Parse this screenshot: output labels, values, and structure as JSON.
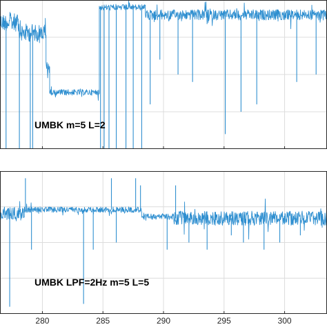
{
  "chart_data": [
    {
      "type": "line",
      "annotation": "UMBK m=5 L=2",
      "xlim": [
        276.5,
        303.5
      ],
      "x_ticks": [
        280,
        285,
        290,
        295,
        300
      ],
      "grid": true,
      "series_color": "#2f8fd0",
      "segments": [
        {
          "x": [
            276.5,
            278.0
          ],
          "y_level": 0.15,
          "noise": 0.06
        },
        {
          "x": [
            278.0,
            280.3
          ],
          "y_level": 0.22,
          "noise": 0.06
        },
        {
          "x": [
            280.3,
            280.6
          ],
          "y_level": 0.45,
          "noise": 0.04
        },
        {
          "x": [
            280.6,
            284.7
          ],
          "y_level": 0.62,
          "noise": 0.02
        },
        {
          "x": [
            284.7,
            288.5
          ],
          "y_level": 0.05,
          "noise": 0.02
        },
        {
          "x": [
            288.5,
            303.5
          ],
          "y_level": 0.1,
          "noise": 0.035
        }
      ],
      "spikes": [
        {
          "x": 277.0,
          "to": 1.0
        },
        {
          "x": 278.1,
          "to": 1.0
        },
        {
          "x": 279.0,
          "to": 1.0
        },
        {
          "x": 279.2,
          "to": 1.0
        },
        {
          "x": 284.8,
          "to": 1.0
        },
        {
          "x": 285.1,
          "to": 1.0
        },
        {
          "x": 285.5,
          "to": 1.0
        },
        {
          "x": 286.1,
          "to": 1.0
        },
        {
          "x": 286.9,
          "to": 1.0
        },
        {
          "x": 287.5,
          "to": 1.0
        },
        {
          "x": 288.2,
          "to": 1.0
        },
        {
          "x": 288.9,
          "to": 0.7
        },
        {
          "x": 289.7,
          "to": 0.4
        },
        {
          "x": 291.2,
          "to": 0.5
        },
        {
          "x": 292.4,
          "to": 0.55
        },
        {
          "x": 295.1,
          "to": 0.9
        },
        {
          "x": 296.4,
          "to": 0.75
        },
        {
          "x": 297.7,
          "to": 0.7
        },
        {
          "x": 301.0,
          "to": 0.55
        },
        {
          "x": 302.6,
          "to": 0.5
        }
      ]
    },
    {
      "type": "line",
      "annotation": "UMBK LPF=2Hz m=5 L=5",
      "xlim": [
        276.5,
        303.5
      ],
      "x_ticks": [
        280,
        285,
        290,
        295,
        300
      ],
      "x_tick_labels": [
        "280",
        "285",
        "290",
        "295",
        "300"
      ],
      "grid": true,
      "series_color": "#2f8fd0",
      "segments": [
        {
          "x": [
            276.5,
            278.5
          ],
          "y_level": 0.3,
          "noise": 0.05
        },
        {
          "x": [
            278.5,
            288.2
          ],
          "y_level": 0.27,
          "noise": 0.02
        },
        {
          "x": [
            288.2,
            290.8
          ],
          "y_level": 0.32,
          "noise": 0.02
        },
        {
          "x": [
            290.8,
            303.5
          ],
          "y_level": 0.33,
          "noise": 0.05
        }
      ],
      "spikes": [
        {
          "x": 277.3,
          "to": 0.95
        },
        {
          "x": 278.6,
          "to": 0.05
        },
        {
          "x": 279.1,
          "to": 0.55
        },
        {
          "x": 283.4,
          "to": 0.93
        },
        {
          "x": 284.2,
          "to": 0.55
        },
        {
          "x": 285.7,
          "to": 0.05
        },
        {
          "x": 286.1,
          "to": 0.5
        },
        {
          "x": 287.7,
          "to": 0.05
        },
        {
          "x": 288.1,
          "to": 0.1
        },
        {
          "x": 290.3,
          "to": 0.55
        },
        {
          "x": 291.0,
          "to": 0.1
        },
        {
          "x": 292.1,
          "to": 0.5
        },
        {
          "x": 293.6,
          "to": 0.55
        },
        {
          "x": 295.6,
          "to": 0.45
        },
        {
          "x": 296.6,
          "to": 0.5
        },
        {
          "x": 298.3,
          "to": 0.55
        },
        {
          "x": 299.6,
          "to": 0.5
        },
        {
          "x": 301.3,
          "to": 0.45
        }
      ]
    }
  ]
}
